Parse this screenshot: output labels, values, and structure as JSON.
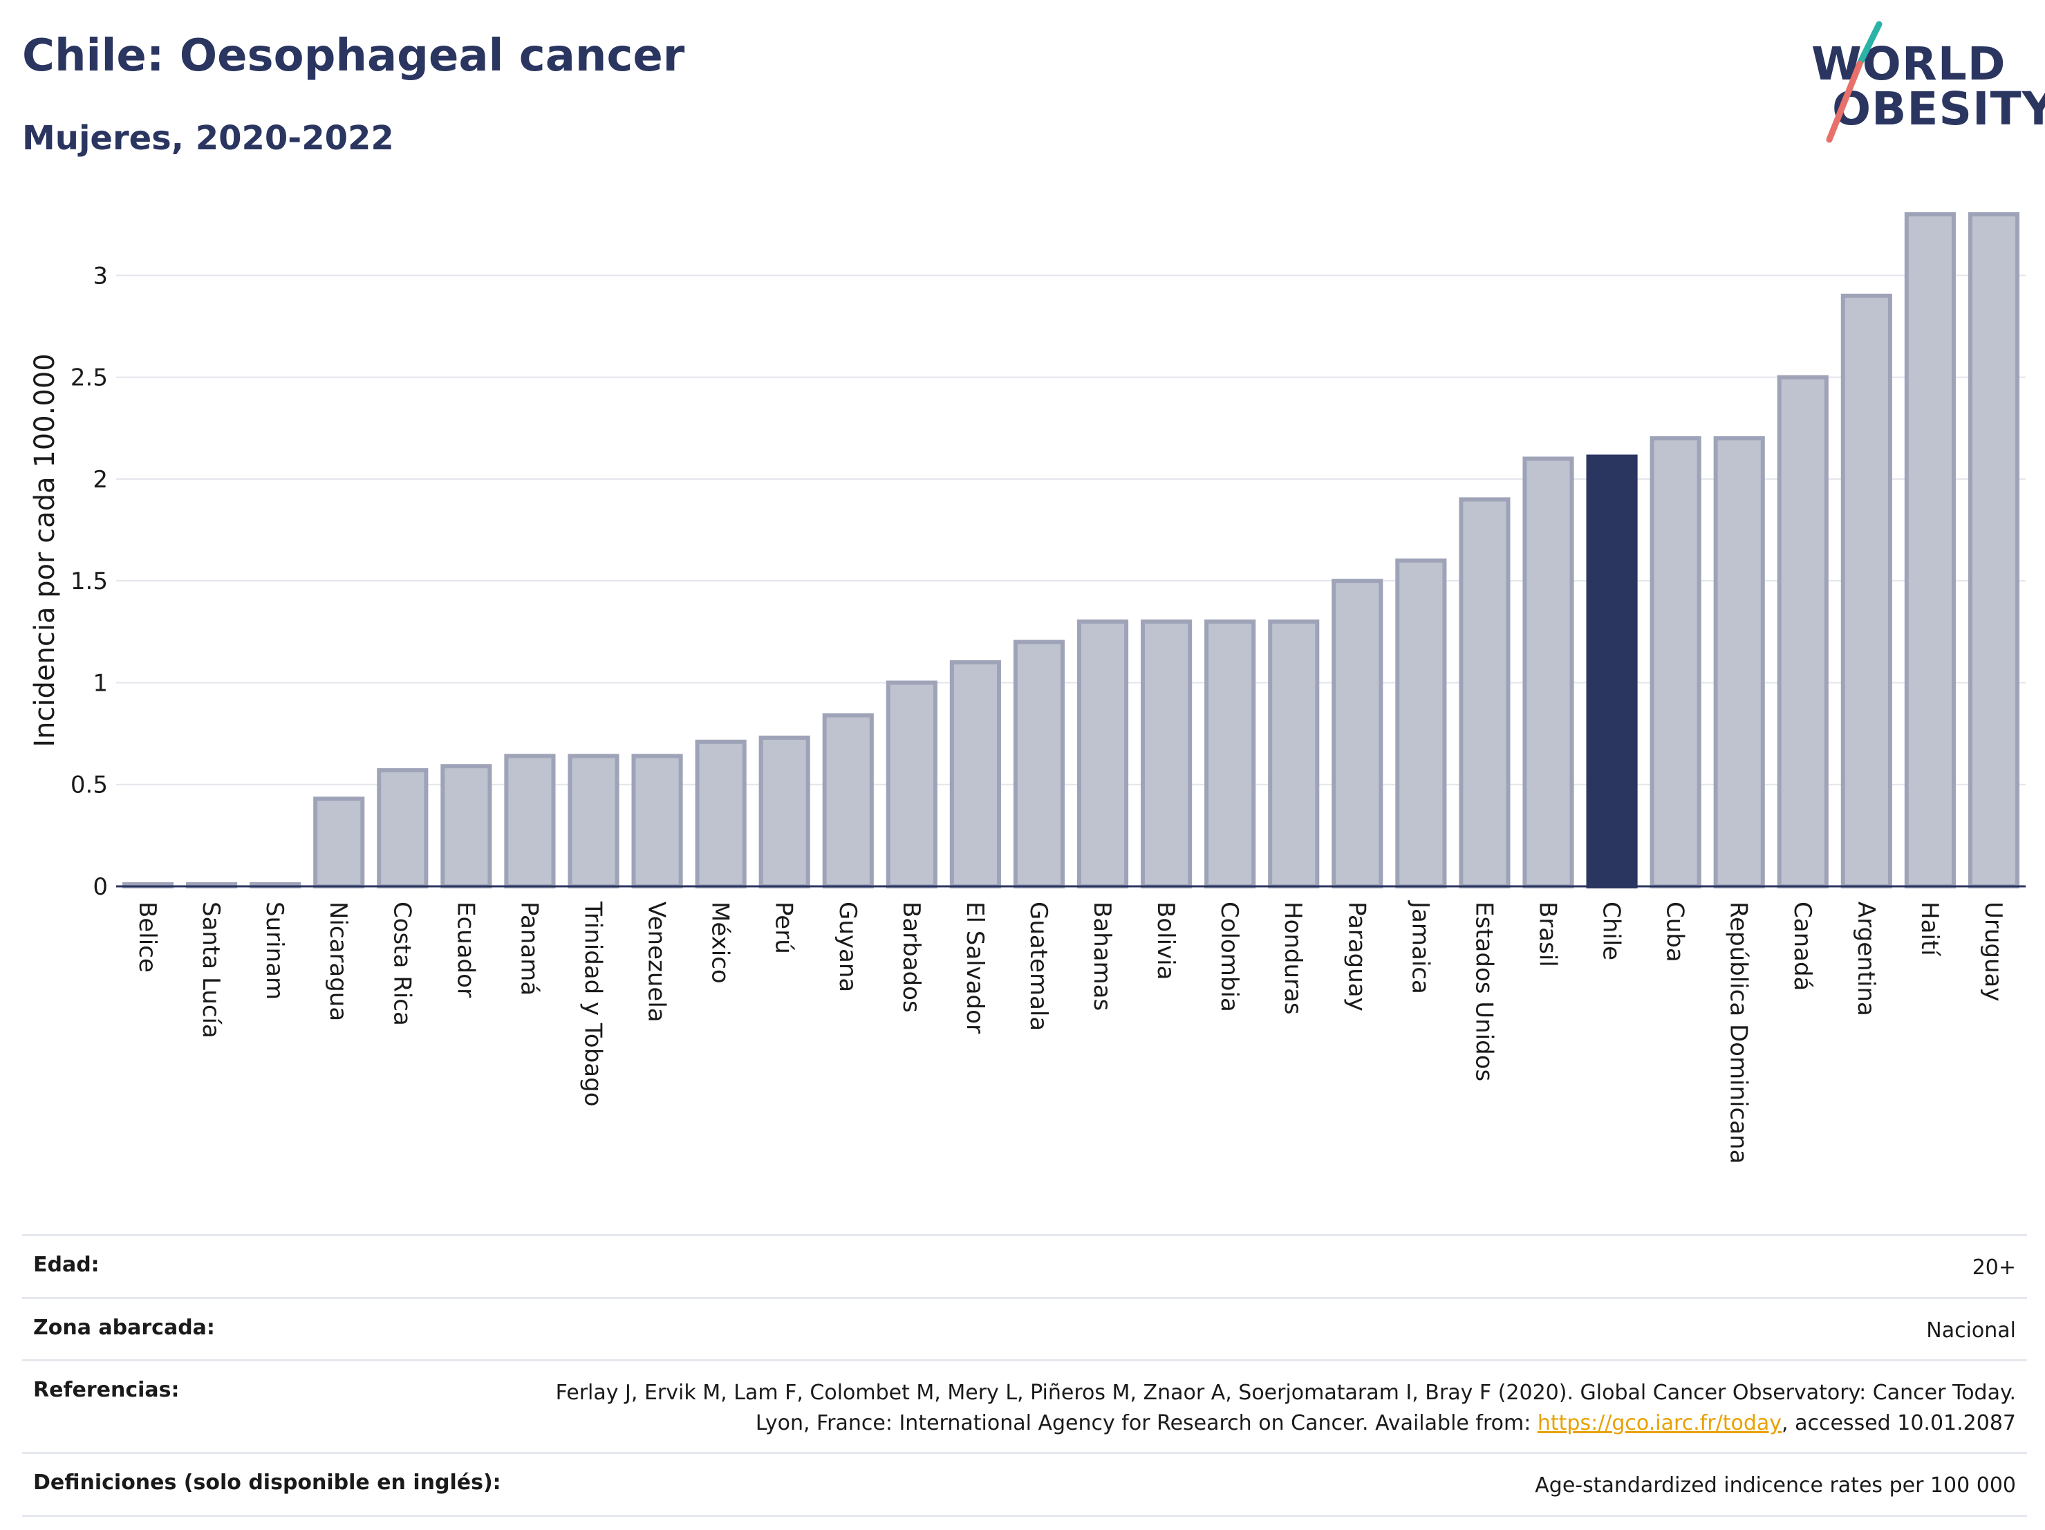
{
  "header": {
    "title": "Chile: Oesophageal cancer",
    "subtitle": "Mujeres, 2020-2022"
  },
  "logo": {
    "line1": "WORLD",
    "line2": "OBESITY",
    "colors": {
      "text": "#2a3560",
      "slash_teal": "#2ab3a6",
      "slash_red": "#e8706a"
    }
  },
  "colors": {
    "bar_fill": "#bfc3d0",
    "bar_stroke": "#9ea3b8",
    "highlight": "#2a3560",
    "grid": "#e3e5ec",
    "axis": "#2a3560"
  },
  "chart_data": {
    "type": "bar",
    "title": "Chile: Oesophageal cancer",
    "subtitle": "Mujeres, 2020-2022",
    "xlabel": "",
    "ylabel": "Incidencia por cada 100.000",
    "ylim": [
      0,
      3.3
    ],
    "yticks": [
      0,
      0.5,
      1,
      1.5,
      2,
      2.5,
      3
    ],
    "ytick_labels": [
      "0",
      "0.5",
      "1",
      "1.5",
      "2",
      "2.5",
      "3"
    ],
    "grid": true,
    "highlight": "Chile",
    "categories": [
      "Belice",
      "Santa Lucía",
      "Surinam",
      "Nicaragua",
      "Costa Rica",
      "Ecuador",
      "Panamá",
      "Trinidad y Tobago",
      "Venezuela",
      "México",
      "Perú",
      "Guyana",
      "Barbados",
      "El Salvador",
      "Guatemala",
      "Bahamas",
      "Bolivia",
      "Colombia",
      "Honduras",
      "Paraguay",
      "Jamaica",
      "Estados Unidos",
      "Brasil",
      "Chile",
      "Cuba",
      "República Dominicana",
      "Canadá",
      "Argentina",
      "Haití",
      "Uruguay"
    ],
    "values": [
      0.01,
      0.01,
      0.01,
      0.43,
      0.57,
      0.59,
      0.64,
      0.64,
      0.64,
      0.71,
      0.73,
      0.84,
      1.0,
      1.1,
      1.2,
      1.3,
      1.3,
      1.3,
      1.3,
      1.5,
      1.6,
      1.9,
      2.1,
      2.11,
      2.2,
      2.2,
      2.5,
      2.9,
      3.3,
      3.3
    ]
  },
  "meta": {
    "age_label": "Edad:",
    "age_value": "20+",
    "area_label": "Zona abarcada:",
    "area_value": "Nacional",
    "refs_label": "Referencias:",
    "refs_text_1": "Ferlay J, Ervik M, Lam F, Colombet M, Mery L, Piñeros M, Znaor A, Soerjomataram I, Bray F (2020). Global Cancer Observatory: Cancer Today. Lyon, France: International Agency for Research on Cancer. Available from: ",
    "refs_link": "https://gco.iarc.fr/today",
    "refs_text_2": ", accessed 10.01.2087",
    "defs_label": "Definiciones (solo disponible en inglés):",
    "defs_value": "Age-standardized indicence rates per 100 000"
  }
}
